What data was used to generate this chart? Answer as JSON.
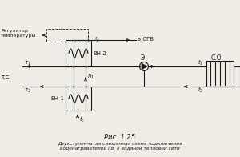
{
  "title": "Рис. 1.25",
  "caption_line1": "Двухступенчатая смешанная схема подключения",
  "caption_line2": "водонагревателей ГВ  к водяной тепловой сети",
  "bg_color": "#f0ede6",
  "line_color": "#1a1a1a",
  "text_color": "#1a1a1a",
  "tau1": "t1",
  "tau2": "t2",
  "vn1": "BH-1",
  "vn2": "BH-2",
  "э": "Э",
  "so": "C.O.",
  "tc_label": "T.C.",
  "cgv": "в СГВ",
  "reg1": "Регулятор",
  "reg2": "температуры"
}
